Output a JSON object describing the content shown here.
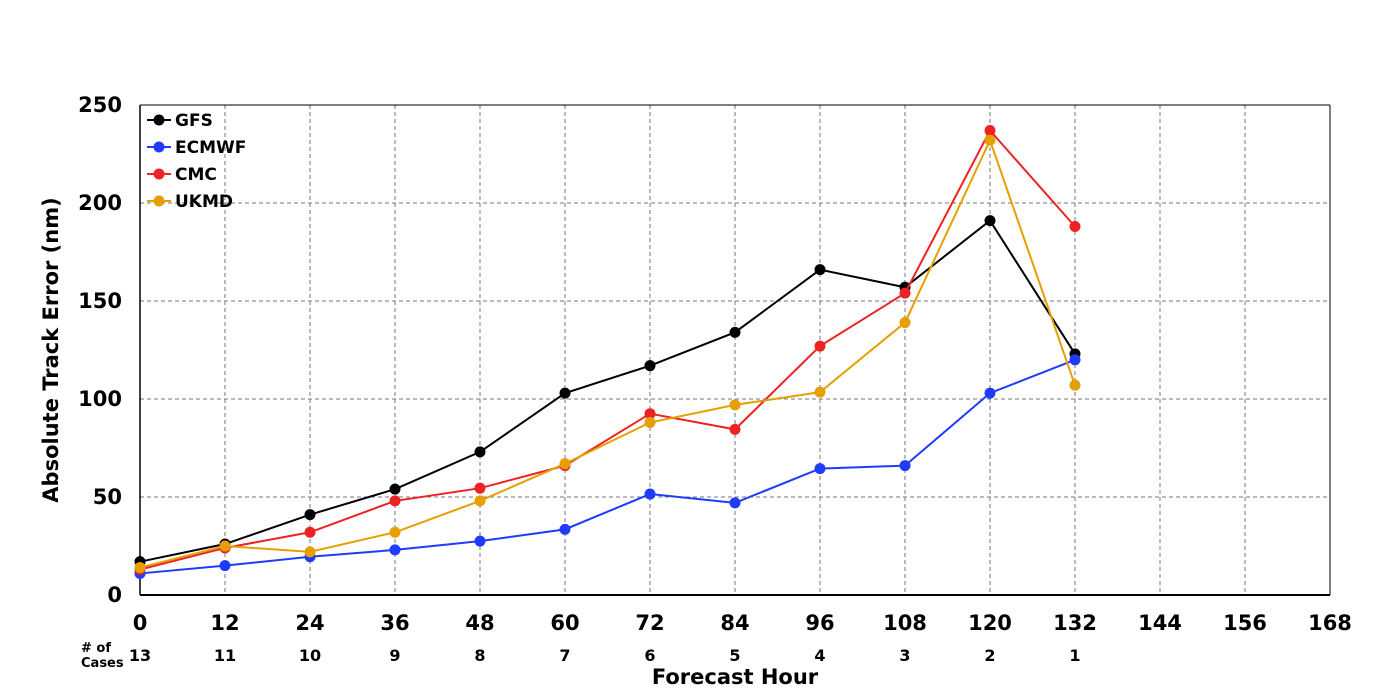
{
  "chart_data": {
    "type": "line",
    "xlabel": "Forecast Hour",
    "ylabel": "Absolute Track Error (nm)",
    "xlim": [
      0,
      168
    ],
    "ylim": [
      0,
      250
    ],
    "x_ticks": [
      0,
      12,
      24,
      36,
      48,
      60,
      72,
      84,
      96,
      108,
      120,
      132,
      144,
      156,
      168
    ],
    "y_ticks": [
      0,
      50,
      100,
      150,
      200,
      250
    ],
    "grid": true,
    "legend_position": "top-left",
    "x": [
      0,
      12,
      24,
      36,
      48,
      60,
      72,
      84,
      96,
      108,
      120,
      132
    ],
    "series": [
      {
        "name": "GFS",
        "color": "#000000",
        "values": [
          17,
          26,
          41,
          54,
          73,
          103,
          117,
          134,
          166,
          157,
          191,
          123
        ]
      },
      {
        "name": "ECMWF",
        "color": "#1f3bff",
        "values": [
          11,
          15,
          19.5,
          23,
          27.5,
          33.5,
          51.5,
          47,
          64.5,
          66,
          103,
          120
        ]
      },
      {
        "name": "CMC",
        "color": "#ee2222",
        "values": [
          13,
          24,
          32,
          48,
          54.5,
          66,
          92.5,
          84.5,
          127,
          154,
          237,
          188
        ]
      },
      {
        "name": "UKMD",
        "color": "#e69f00",
        "values": [
          14,
          25,
          22,
          32,
          48,
          67,
          88,
          97,
          103.5,
          139,
          232,
          107
        ]
      }
    ],
    "cases_label": "# of Cases",
    "cases_label_lines": [
      "# of",
      "Cases"
    ],
    "cases": [
      "13",
      "11",
      "10",
      "9",
      "8",
      "7",
      "6",
      "5",
      "4",
      "3",
      "2",
      "1"
    ]
  }
}
